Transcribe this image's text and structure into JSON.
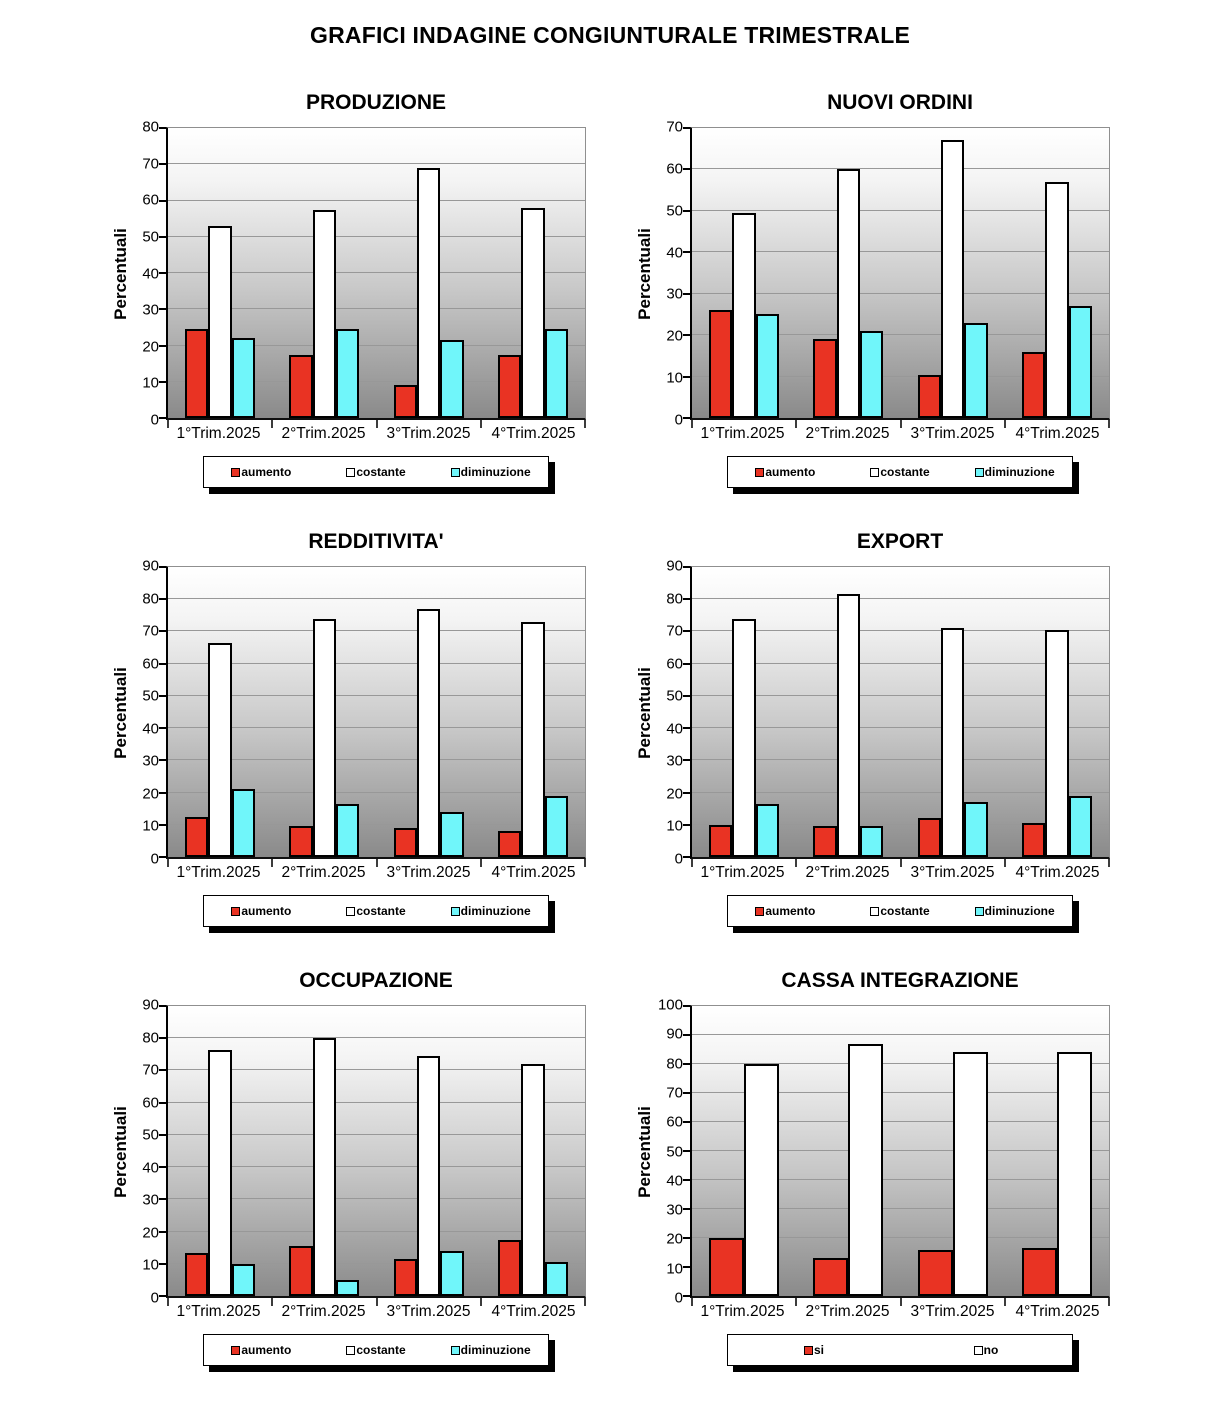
{
  "title": "GRAFICI INDAGINE CONGIUNTURALE TRIMESTRALE",
  "axis_label": "Percentuali",
  "categories": [
    "1°Trim.2025",
    "2°Trim.2025",
    "3°Trim.2025",
    "4°Trim.2025"
  ],
  "colors": {
    "aumento": "#e93323",
    "costante": "#ffffff",
    "diminuzione": "#70f6fa",
    "si": "#e93323",
    "no": "#ffffff"
  },
  "chart_data": [
    {
      "type": "bar",
      "title": "PRODUZIONE",
      "ylabel": "Percentuali",
      "ylim": [
        0,
        80
      ],
      "ytick_step": 10,
      "grid": true,
      "legend_position": "bottom",
      "categories": [
        "1°Trim.2025",
        "2°Trim.2025",
        "3°Trim.2025",
        "4°Trim.2025"
      ],
      "series": [
        {
          "name": "aumento",
          "color": "#e93323",
          "values": [
            24.5,
            17.5,
            9,
            17.5
          ]
        },
        {
          "name": "costante",
          "color": "#ffffff",
          "values": [
            53,
            57.5,
            69,
            58
          ]
        },
        {
          "name": "diminuzione",
          "color": "#70f6fa",
          "values": [
            22,
            24.5,
            21.5,
            24.5
          ]
        }
      ]
    },
    {
      "type": "bar",
      "title": "NUOVI ORDINI",
      "ylabel": "Percentuali",
      "ylim": [
        0,
        70
      ],
      "ytick_step": 10,
      "grid": true,
      "legend_position": "bottom",
      "categories": [
        "1°Trim.2025",
        "2°Trim.2025",
        "3°Trim.2025",
        "4°Trim.2025"
      ],
      "series": [
        {
          "name": "aumento",
          "color": "#e93323",
          "values": [
            26,
            19,
            10.5,
            16
          ]
        },
        {
          "name": "costante",
          "color": "#ffffff",
          "values": [
            49.5,
            60,
            67,
            57
          ]
        },
        {
          "name": "diminuzione",
          "color": "#70f6fa",
          "values": [
            25,
            21,
            23,
            27
          ]
        }
      ]
    },
    {
      "type": "bar",
      "title": "REDDITIVITA'",
      "ylabel": "Percentuali",
      "ylim": [
        0,
        90
      ],
      "ytick_step": 10,
      "grid": true,
      "legend_position": "bottom",
      "categories": [
        "1°Trim.2025",
        "2°Trim.2025",
        "3°Trim.2025",
        "4°Trim.2025"
      ],
      "series": [
        {
          "name": "aumento",
          "color": "#e93323",
          "values": [
            12.5,
            9.5,
            9,
            8
          ]
        },
        {
          "name": "costante",
          "color": "#ffffff",
          "values": [
            66.5,
            74,
            77,
            73
          ]
        },
        {
          "name": "diminuzione",
          "color": "#70f6fa",
          "values": [
            21,
            16.5,
            14,
            19
          ]
        }
      ]
    },
    {
      "type": "bar",
      "title": "EXPORT",
      "ylabel": "Percentuali",
      "ylim": [
        0,
        90
      ],
      "ytick_step": 10,
      "grid": true,
      "legend_position": "bottom",
      "categories": [
        "1°Trim.2025",
        "2°Trim.2025",
        "3°Trim.2025",
        "4°Trim.2025"
      ],
      "series": [
        {
          "name": "aumento",
          "color": "#e93323",
          "values": [
            10,
            9.5,
            12,
            10.5
          ]
        },
        {
          "name": "costante",
          "color": "#ffffff",
          "values": [
            74,
            81.5,
            71,
            70.5
          ]
        },
        {
          "name": "diminuzione",
          "color": "#70f6fa",
          "values": [
            16.5,
            9.5,
            17,
            19
          ]
        }
      ]
    },
    {
      "type": "bar",
      "title": "OCCUPAZIONE",
      "ylabel": "Percentuali",
      "ylim": [
        0,
        90
      ],
      "ytick_step": 10,
      "grid": true,
      "legend_position": "bottom",
      "categories": [
        "1°Trim.2025",
        "2°Trim.2025",
        "3°Trim.2025",
        "4°Trim.2025"
      ],
      "series": [
        {
          "name": "aumento",
          "color": "#e93323",
          "values": [
            13.5,
            15.5,
            11.5,
            17.5
          ]
        },
        {
          "name": "costante",
          "color": "#ffffff",
          "values": [
            76.5,
            80,
            74.5,
            72
          ]
        },
        {
          "name": "diminuzione",
          "color": "#70f6fa",
          "values": [
            10,
            5,
            14,
            10.5
          ]
        }
      ]
    },
    {
      "type": "bar",
      "title": "CASSA INTEGRAZIONE",
      "ylabel": "Percentuali",
      "ylim": [
        0,
        100
      ],
      "ytick_step": 10,
      "grid": true,
      "legend_position": "bottom",
      "categories": [
        "1°Trim.2025",
        "2°Trim.2025",
        "3°Trim.2025",
        "4°Trim.2025"
      ],
      "series": [
        {
          "name": "si",
          "color": "#e93323",
          "values": [
            20,
            13,
            16,
            16.5
          ]
        },
        {
          "name": "no",
          "color": "#ffffff",
          "values": [
            80,
            87,
            84,
            84
          ]
        }
      ]
    }
  ]
}
